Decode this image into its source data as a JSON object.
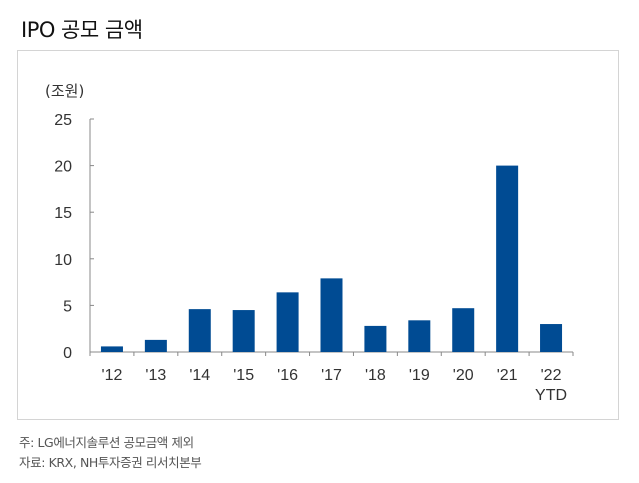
{
  "title": "IPO 공모 금액",
  "footnotes": [
    "주: LG에너지솔루션 공모금액 제외",
    "자료: KRX, NH투자증권 리서치본부"
  ],
  "chart_data": {
    "type": "bar",
    "title": "IPO 공모 금액",
    "ylabel": "(조원)",
    "xlabel": "",
    "categories": [
      "'12",
      "'13",
      "'14",
      "'15",
      "'16",
      "'17",
      "'18",
      "'19",
      "'20",
      "'21",
      "'22\nYTD"
    ],
    "values": [
      0.6,
      1.3,
      4.6,
      4.5,
      6.4,
      7.9,
      2.8,
      3.4,
      4.7,
      20.0,
      3.0
    ],
    "ylim": [
      0,
      25
    ],
    "yticks": [
      0,
      5,
      10,
      15,
      20,
      25
    ],
    "grid": false,
    "bar_color": "#004b93"
  }
}
